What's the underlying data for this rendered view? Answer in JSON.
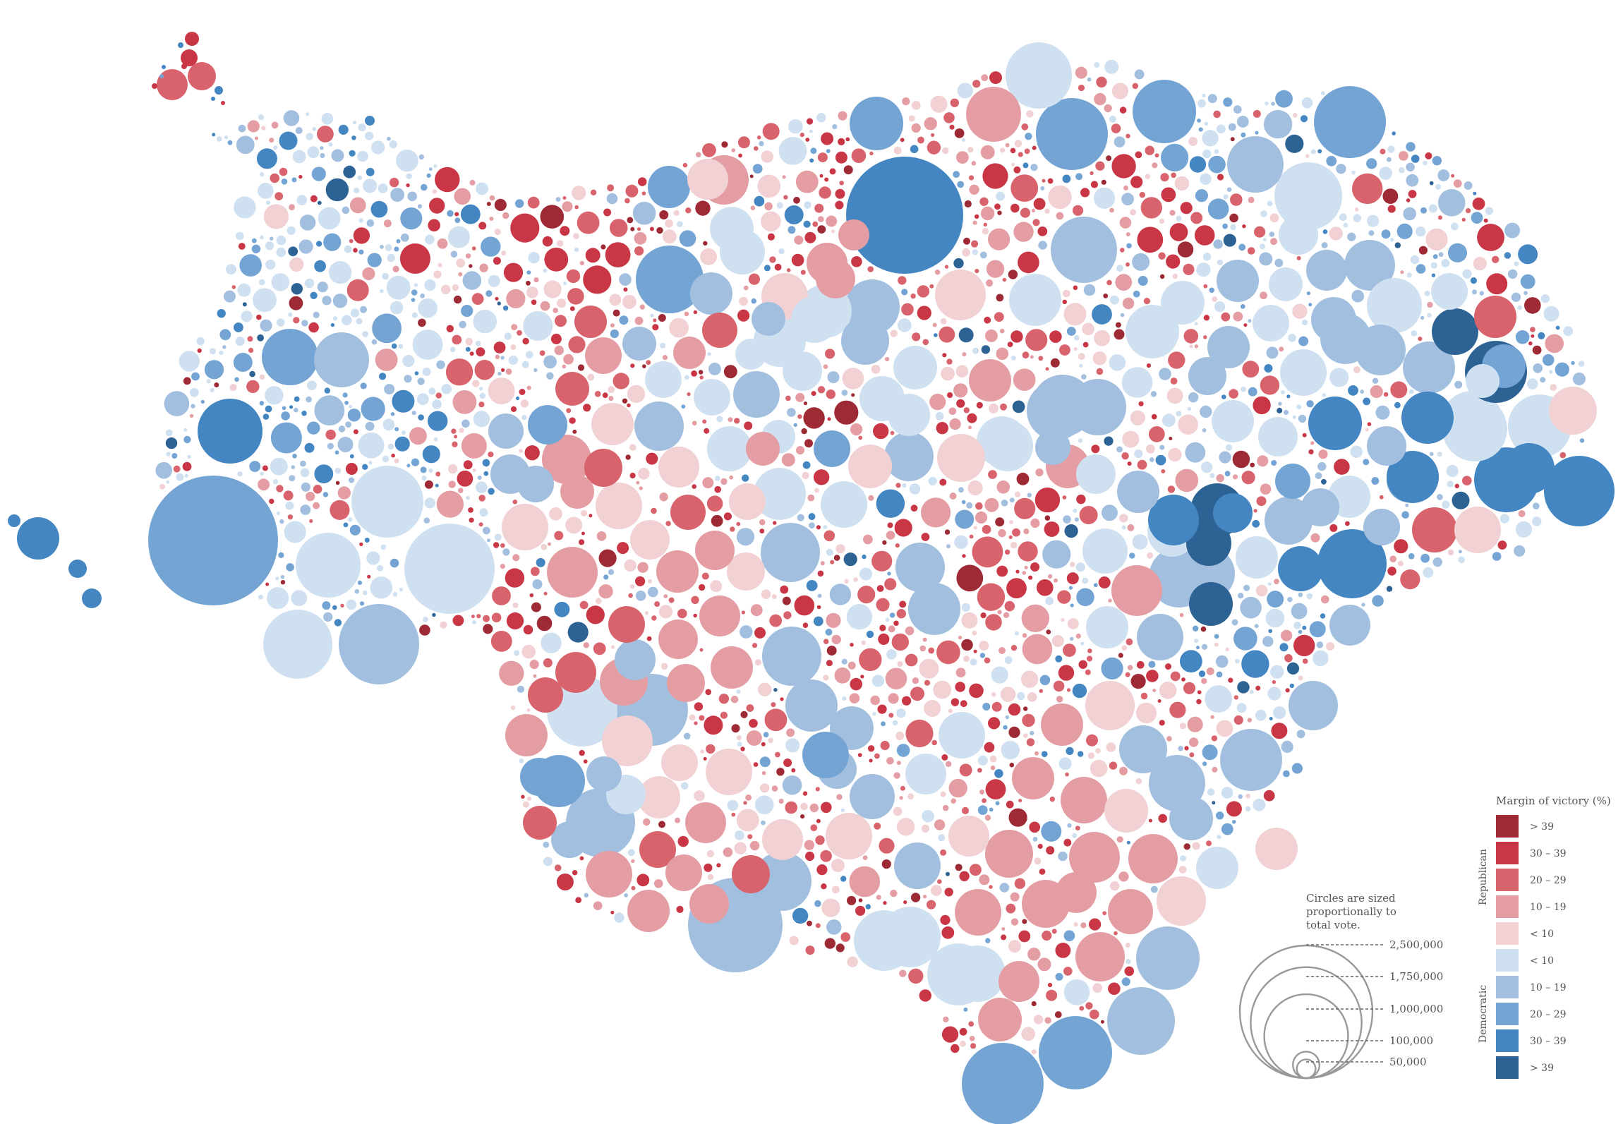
{
  "legend": {
    "title": "Margin of victory (%)",
    "group_republican": "Republican",
    "group_democratic": "Democratic",
    "entries": [
      {
        "label": "> 39",
        "color": "#9e2a36",
        "party": "Republican"
      },
      {
        "label": "30 – 39",
        "color": "#c93645",
        "party": "Republican"
      },
      {
        "label": "20 – 29",
        "color": "#d8636d",
        "party": "Republican"
      },
      {
        "label": "10 – 19",
        "color": "#e49ea3",
        "party": "Republican"
      },
      {
        "label": "< 10",
        "color": "#f1d1d3",
        "party": "Republican"
      },
      {
        "label": "< 10",
        "color": "#cfe0f0",
        "party": "Democratic"
      },
      {
        "label": "10 – 19",
        "color": "#a2bfdf",
        "party": "Democratic"
      },
      {
        "label": "20 – 29",
        "color": "#73a4d4",
        "party": "Democratic"
      },
      {
        "label": "30 – 39",
        "color": "#4386c2",
        "party": "Democratic"
      },
      {
        "label": "> 39",
        "color": "#2d6394",
        "party": "Democratic"
      }
    ]
  },
  "size_legend": {
    "caption_lines": [
      "Circles are sized",
      "proportionally to",
      "total vote."
    ],
    "values": [
      {
        "label": "2,500,000",
        "votes": 2500000
      },
      {
        "label": "1,750,000",
        "votes": 1750000
      },
      {
        "label": "1,000,000",
        "votes": 1000000
      },
      {
        "label": "100,000",
        "votes": 100000
      },
      {
        "label": "50,000",
        "votes": 50000
      }
    ],
    "stroke_color": "#999999"
  },
  "colors": {
    "r5": "#9e2a36",
    "r4": "#c93645",
    "r3": "#d8636d",
    "r2": "#e49ea3",
    "r1": "#f1d1d3",
    "d1": "#cfe0f0",
    "d2": "#a2bfdf",
    "d3": "#73a4d4",
    "d4": "#4386c2",
    "d5": "#2d6394"
  }
}
